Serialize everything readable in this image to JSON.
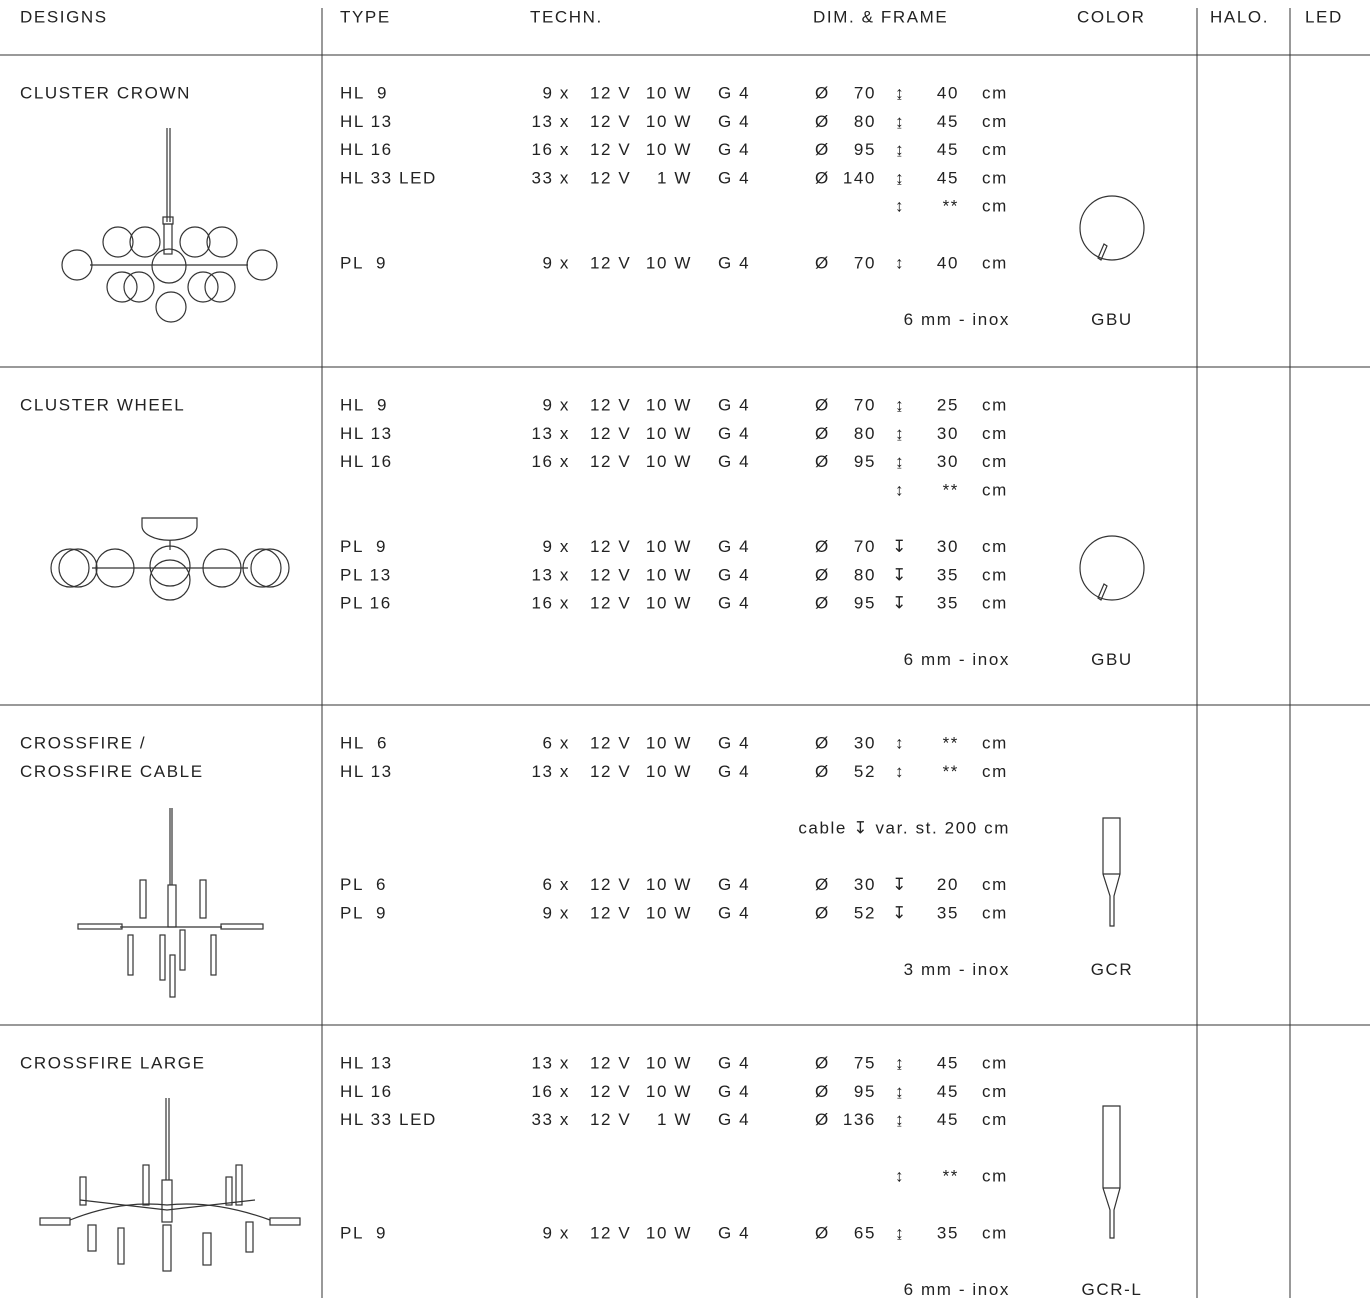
{
  "header": [
    "DESIGNS",
    "TYPE",
    "TECHN.",
    "DIM. & FRAME",
    "COLOR",
    "HALO.",
    "LED"
  ],
  "sections": [
    {
      "design": [
        "CLUSTER CROWN"
      ],
      "frame": "6 mm - inox",
      "color": "GBU",
      "groups": [
        [
          {
            "type": "HL  9",
            "qty": "9 x",
            "volt": "12 V",
            "watt": "10 W",
            "socket": "G 4",
            "dsign": "Ø",
            "dia": "70",
            "hsign": "↨",
            "height": "40",
            "unit": "cm"
          },
          {
            "type": "HL 13",
            "qty": "13 x",
            "volt": "12 V",
            "watt": "10 W",
            "socket": "G 4",
            "dsign": "Ø",
            "dia": "80",
            "hsign": "↨",
            "height": "45",
            "unit": "cm"
          },
          {
            "type": "HL 16",
            "qty": "16 x",
            "volt": "12 V",
            "watt": "10 W",
            "socket": "G 4",
            "dsign": "Ø",
            "dia": "95",
            "hsign": "↨",
            "height": "45",
            "unit": "cm"
          },
          {
            "type": "HL 33 LED",
            "qty": "33 x",
            "volt": "12 V",
            "watt": "1 W",
            "socket": "G 4",
            "dsign": "Ø",
            "dia": "140",
            "hsign": "↨",
            "height": "45",
            "unit": "cm"
          },
          {
            "hsign": "↕",
            "height": "**",
            "unit": "cm"
          }
        ],
        [
          {
            "type": "PL  9",
            "qty": "9 x",
            "volt": "12 V",
            "watt": "10 W",
            "socket": "G 4",
            "dsign": "Ø",
            "dia": "70",
            "hsign": "↕",
            "height": "40",
            "unit": "cm"
          }
        ]
      ]
    },
    {
      "design": [
        "CLUSTER WHEEL"
      ],
      "frame": "6 mm - inox",
      "color": "GBU",
      "groups": [
        [
          {
            "type": "HL  9",
            "qty": "9 x",
            "volt": "12 V",
            "watt": "10 W",
            "socket": "G 4",
            "dsign": "Ø",
            "dia": "70",
            "hsign": "↨",
            "height": "25",
            "unit": "cm"
          },
          {
            "type": "HL 13",
            "qty": "13 x",
            "volt": "12 V",
            "watt": "10 W",
            "socket": "G 4",
            "dsign": "Ø",
            "dia": "80",
            "hsign": "↨",
            "height": "30",
            "unit": "cm"
          },
          {
            "type": "HL 16",
            "qty": "16 x",
            "volt": "12 V",
            "watt": "10 W",
            "socket": "G 4",
            "dsign": "Ø",
            "dia": "95",
            "hsign": "↨",
            "height": "30",
            "unit": "cm"
          },
          {
            "hsign": "↕",
            "height": "**",
            "unit": "cm"
          }
        ],
        [
          {
            "type": "PL  9",
            "qty": "9 x",
            "volt": "12 V",
            "watt": "10 W",
            "socket": "G 4",
            "dsign": "Ø",
            "dia": "70",
            "hsign": "↧",
            "height": "30",
            "unit": "cm"
          },
          {
            "type": "PL 13",
            "qty": "13 x",
            "volt": "12 V",
            "watt": "10 W",
            "socket": "G 4",
            "dsign": "Ø",
            "dia": "80",
            "hsign": "↧",
            "height": "35",
            "unit": "cm"
          },
          {
            "type": "PL 16",
            "qty": "16 x",
            "volt": "12 V",
            "watt": "10 W",
            "socket": "G 4",
            "dsign": "Ø",
            "dia": "95",
            "hsign": "↧",
            "height": "35",
            "unit": "cm"
          }
        ]
      ]
    },
    {
      "design": [
        "CROSSFIRE /",
        "CROSSFIRE CABLE"
      ],
      "frame": "3 mm - inox",
      "color": "GCR",
      "groups": [
        [
          {
            "type": "HL  6",
            "qty": "6 x",
            "volt": "12 V",
            "watt": "10 W",
            "socket": "G 4",
            "dsign": "Ø",
            "dia": "30",
            "hsign": "↕",
            "height": "**",
            "unit": "cm"
          },
          {
            "type": "HL 13",
            "qty": "13 x",
            "volt": "12 V",
            "watt": "10 W",
            "socket": "G 4",
            "dsign": "Ø",
            "dia": "52",
            "hsign": "↕",
            "height": "**",
            "unit": "cm"
          }
        ],
        [
          {
            "note": "cable ↧ var. st. 200 cm"
          }
        ],
        [
          {
            "type": "PL  6",
            "qty": "6 x",
            "volt": "12 V",
            "watt": "10 W",
            "socket": "G 4",
            "dsign": "Ø",
            "dia": "30",
            "hsign": "↧",
            "height": "20",
            "unit": "cm"
          },
          {
            "type": "PL  9",
            "qty": "9 x",
            "volt": "12 V",
            "watt": "10 W",
            "socket": "G 4",
            "dsign": "Ø",
            "dia": "52",
            "hsign": "↧",
            "height": "35",
            "unit": "cm"
          }
        ]
      ]
    },
    {
      "design": [
        "CROSSFIRE LARGE"
      ],
      "frame": "6 mm - inox",
      "color": "GCR-L",
      "groups": [
        [
          {
            "type": "HL 13",
            "qty": "13 x",
            "volt": "12 V",
            "watt": "10 W",
            "socket": "G 4",
            "dsign": "Ø",
            "dia": "75",
            "hsign": "↨",
            "height": "45",
            "unit": "cm"
          },
          {
            "type": "HL 16",
            "qty": "16 x",
            "volt": "12 V",
            "watt": "10 W",
            "socket": "G 4",
            "dsign": "Ø",
            "dia": "95",
            "hsign": "↨",
            "height": "45",
            "unit": "cm"
          },
          {
            "type": "HL 33 LED",
            "qty": "33 x",
            "volt": "12 V",
            "watt": "1 W",
            "socket": "G 4",
            "dsign": "Ø",
            "dia": "136",
            "hsign": "↨",
            "height": "45",
            "unit": "cm"
          }
        ],
        [
          {
            "hsign": "↕",
            "height": "**",
            "unit": "cm"
          }
        ],
        [
          {
            "type": "PL  9",
            "qty": "9 x",
            "volt": "12 V",
            "watt": "10 W",
            "socket": "G 4",
            "dsign": "Ø",
            "dia": "65",
            "hsign": "↨",
            "height": "35",
            "unit": "cm"
          }
        ]
      ]
    }
  ]
}
